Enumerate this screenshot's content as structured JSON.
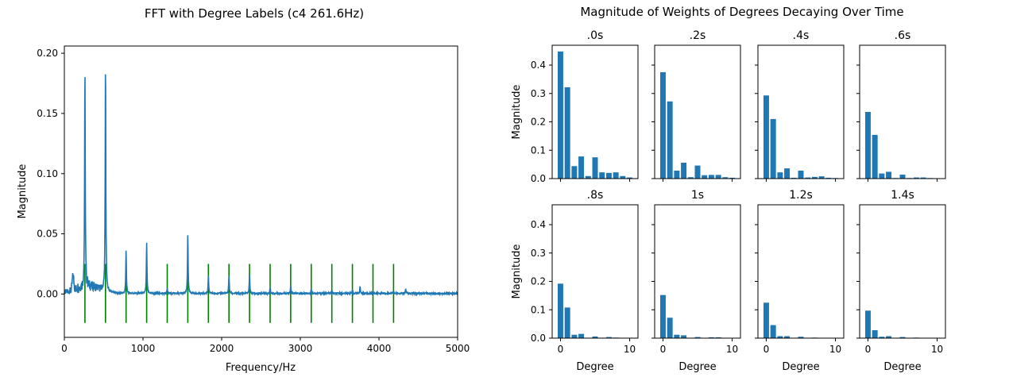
{
  "figure": {
    "colors": {
      "bar": "#1f77b4",
      "line": "#1f77b4",
      "marker": "#008000",
      "axis": "#000000"
    }
  },
  "chart_data": [
    {
      "type": "line",
      "title": "FFT with Degree Labels (c4 261.6Hz)",
      "xlabel": "Frequency/Hz",
      "ylabel": "Magnitude",
      "xlim": [
        0,
        5000
      ],
      "ylim": [
        -0.036,
        0.206
      ],
      "xticks": [
        0,
        1000,
        2000,
        3000,
        4000,
        5000
      ],
      "xtick_labels": [
        "0",
        "1000",
        "2000",
        "3000",
        "4000",
        "5000"
      ],
      "yticks": [
        0.0,
        0.05,
        0.1,
        0.15,
        0.2
      ],
      "ytick_labels": [
        "0.00",
        "0.05",
        "0.10",
        "0.15",
        "0.20"
      ],
      "grid": false,
      "peaks": [
        {
          "f": 261.6,
          "mag": 0.185
        },
        {
          "f": 523.2,
          "mag": 0.195
        },
        {
          "f": 784.8,
          "mag": 0.036
        },
        {
          "f": 1046.4,
          "mag": 0.042
        },
        {
          "f": 1308.0,
          "mag": 0.004
        },
        {
          "f": 1569.6,
          "mag": 0.05
        },
        {
          "f": 1831.2,
          "mag": 0.014
        },
        {
          "f": 2092.8,
          "mag": 0.015
        },
        {
          "f": 2354.4,
          "mag": 0.016
        },
        {
          "f": 2616.0,
          "mag": 0.005
        },
        {
          "f": 2877.6,
          "mag": 0.006
        },
        {
          "f": 3139.2,
          "mag": 0.004
        },
        {
          "f": 3400.8,
          "mag": 0.002
        },
        {
          "f": 3662.4,
          "mag": 0.002
        },
        {
          "f": 3760.0,
          "mag": 0.006
        },
        {
          "f": 3924.0,
          "mag": 0.002
        },
        {
          "f": 4185.6,
          "mag": 0.002
        },
        {
          "f": 4340.0,
          "mag": 0.004
        }
      ],
      "degree_markers": {
        "x": [
          261.6,
          523.2,
          784.8,
          1046.4,
          1308.0,
          1569.6,
          1831.2,
          2092.8,
          2354.4,
          2616.0,
          2877.6,
          3139.2,
          3400.8,
          3662.4,
          3924.0,
          4185.6
        ],
        "y_min": -0.024,
        "y_max": 0.025
      }
    },
    {
      "type": "bar",
      "title": "Magnitude of Weights of Degrees Decaying Over Time",
      "xlabel": "Degree",
      "ylabel": "Magnitude",
      "ylim": [
        0,
        0.47
      ],
      "xlim": [
        -1.2,
        11.2
      ],
      "xticks": [
        0,
        10
      ],
      "yticks": [
        0.0,
        0.1,
        0.2,
        0.3,
        0.4
      ],
      "ytick_labels": [
        "0.0",
        "0.1",
        "0.2",
        "0.3",
        "0.4"
      ],
      "categories": [
        0,
        1,
        2,
        3,
        4,
        5,
        6,
        7,
        8,
        9,
        10
      ],
      "panels": [
        {
          "title": ".0s",
          "values": [
            0.448,
            0.322,
            0.044,
            0.078,
            0.009,
            0.075,
            0.022,
            0.02,
            0.022,
            0.009,
            0.004
          ]
        },
        {
          "title": ".2s",
          "values": [
            0.375,
            0.272,
            0.028,
            0.056,
            0.005,
            0.046,
            0.012,
            0.013,
            0.013,
            0.005,
            0.003
          ]
        },
        {
          "title": ".4s",
          "values": [
            0.293,
            0.21,
            0.022,
            0.036,
            0.003,
            0.028,
            0.004,
            0.006,
            0.008,
            0.003,
            0.002
          ]
        },
        {
          "title": ".6s",
          "values": [
            0.235,
            0.154,
            0.018,
            0.024,
            0.002,
            0.014,
            0.002,
            0.004,
            0.004,
            0.002,
            0.001
          ]
        },
        {
          "title": ".8s",
          "values": [
            0.192,
            0.108,
            0.012,
            0.015,
            0.001,
            0.006,
            0.001,
            0.004,
            0.002,
            0.001,
            0.001
          ]
        },
        {
          "title": "1s",
          "values": [
            0.152,
            0.072,
            0.012,
            0.01,
            0.001,
            0.004,
            0.001,
            0.003,
            0.003,
            0.001,
            0.001
          ]
        },
        {
          "title": "1.2s",
          "values": [
            0.125,
            0.046,
            0.007,
            0.007,
            0.001,
            0.005,
            0.001,
            0.002,
            0.001,
            0.001,
            0.0
          ]
        },
        {
          "title": "1.4s",
          "values": [
            0.097,
            0.028,
            0.005,
            0.007,
            0.001,
            0.004,
            0.001,
            0.002,
            0.001,
            0.001,
            0.0
          ]
        }
      ]
    }
  ]
}
